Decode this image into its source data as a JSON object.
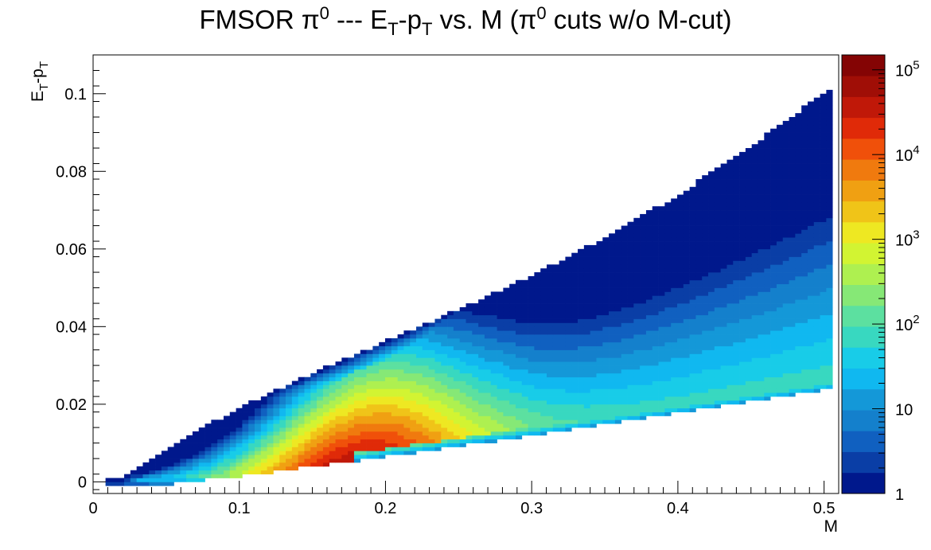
{
  "chart_data": {
    "type": "heatmap",
    "title_parts": {
      "pre": "FMSOR π",
      "sup1": "0",
      "mid1": " --- E",
      "sub1": "T",
      "mid2": "-p",
      "sub2": "T",
      "mid3": " vs. M (π",
      "sup2": "0",
      "post": " cuts w/o M-cut)"
    },
    "xlabel": "M",
    "ylabel_parts": {
      "a": "E",
      "sub1": "T",
      "b": "-p",
      "sub2": "T"
    },
    "xlim": [
      0,
      0.51
    ],
    "ylim": [
      -0.003,
      0.11
    ],
    "x_ticks": [
      "0",
      "0.1",
      "0.2",
      "0.3",
      "0.4",
      "0.5"
    ],
    "x_tick_values": [
      0,
      0.1,
      0.2,
      0.3,
      0.4,
      0.5
    ],
    "y_ticks": [
      "0",
      "0.02",
      "0.04",
      "0.06",
      "0.08",
      "0.1"
    ],
    "y_tick_values": [
      0,
      0.02,
      0.04,
      0.06,
      0.08,
      0.1
    ],
    "z_scale": "log",
    "z_range": [
      1,
      150000
    ],
    "colorbar_labels": [
      {
        "base": "1",
        "exp": "",
        "value": 1
      },
      {
        "base": "10",
        "exp": "",
        "value": 10
      },
      {
        "base": "10",
        "exp": "2",
        "value": 100
      },
      {
        "base": "10",
        "exp": "3",
        "value": 1000
      },
      {
        "base": "10",
        "exp": "4",
        "value": 10000
      },
      {
        "base": "10",
        "exp": "5",
        "value": 100000
      }
    ],
    "palette": [
      "#00188c",
      "#0a3ea6",
      "#1060c0",
      "#1480cc",
      "#1498d8",
      "#10b8f0",
      "#18cce8",
      "#38d8c0",
      "#5ce0a0",
      "#86e876",
      "#aef050",
      "#d2f432",
      "#eee822",
      "#f0c418",
      "#f0a012",
      "#f07a0e",
      "#f0500a",
      "#e02a08",
      "#c01808",
      "#a00e06",
      "#840404"
    ],
    "grid": false,
    "legend": "colorbar-right"
  }
}
